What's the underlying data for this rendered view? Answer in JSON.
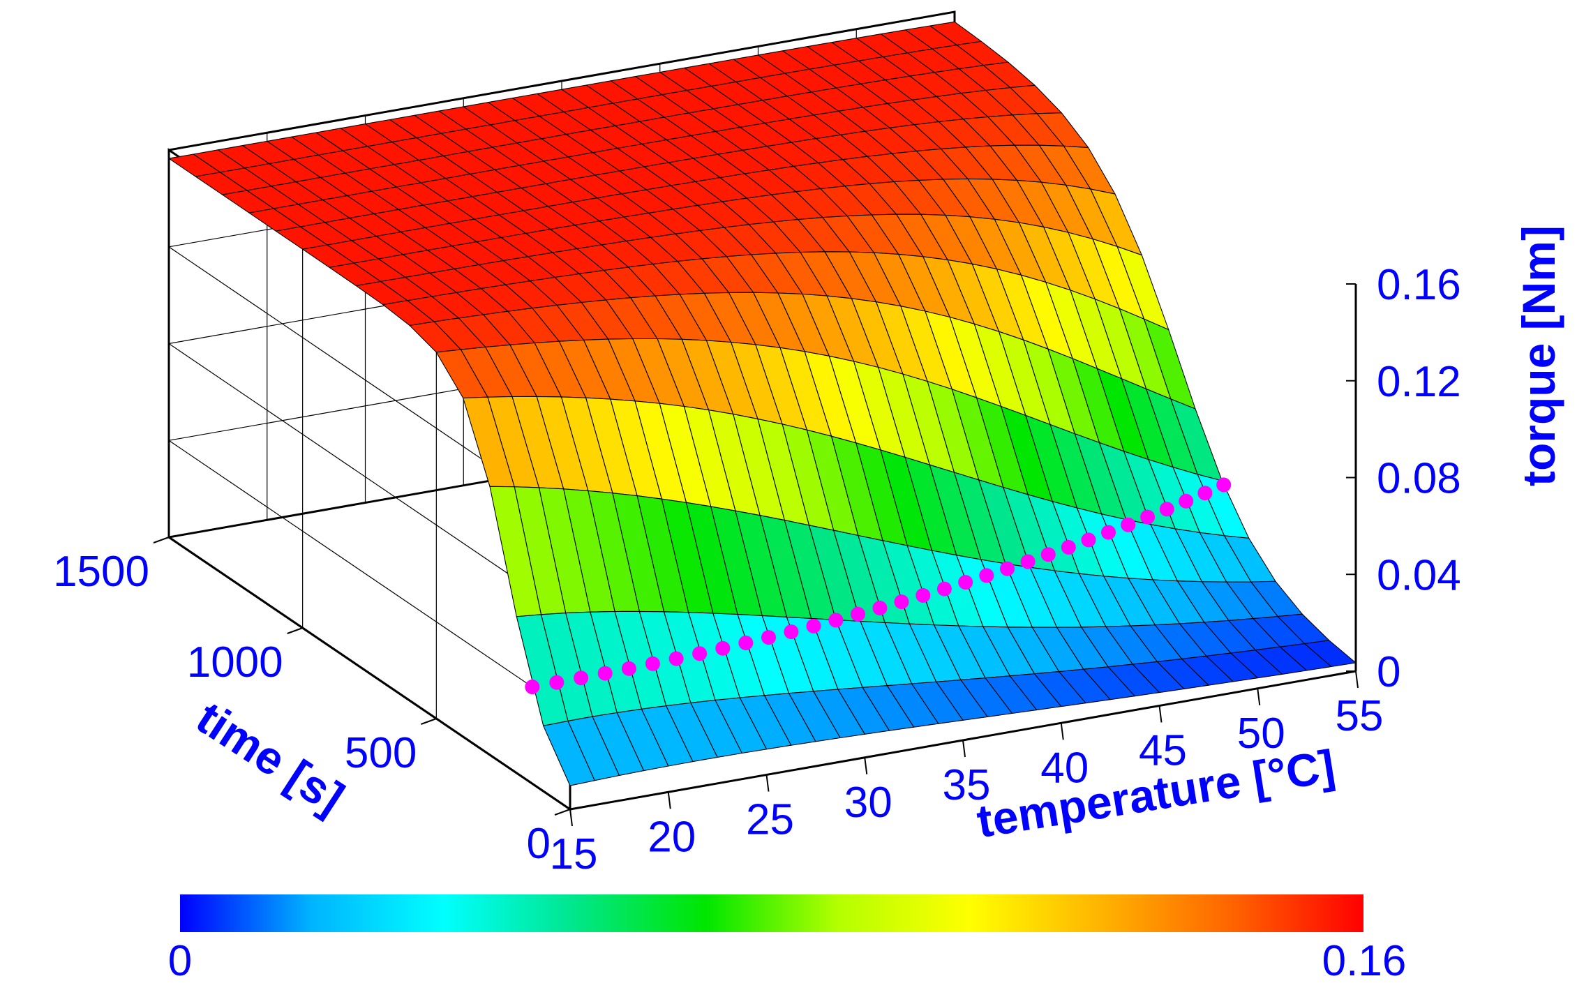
{
  "chart_data": {
    "type": "surface3d",
    "x_axis": {
      "label": "temperature [°C]",
      "ticks": [
        15,
        20,
        25,
        30,
        35,
        40,
        45,
        50,
        55
      ],
      "range": [
        15,
        55
      ]
    },
    "y_axis": {
      "label": "time [s]",
      "ticks": [
        0,
        500,
        1000,
        1500
      ],
      "range": [
        0,
        1500
      ]
    },
    "z_axis": {
      "label": "torque [Nm]",
      "ticks": [
        "0",
        "0.04",
        "0.08",
        "0.12",
        "0.16"
      ],
      "range": [
        0,
        0.16
      ]
    },
    "colorbar": {
      "min_label": "0",
      "max_label": "0.16",
      "colors": [
        "#0000ff",
        "#00b4ff",
        "#00ffff",
        "#00e68c",
        "#00e600",
        "#b4ff00",
        "#ffff00",
        "#ffb400",
        "#ff6400",
        "#ff0000"
      ]
    },
    "surface": {
      "grid_temperature_count": 33,
      "grid_time_count": 16,
      "description_of_gel_point": "torque rises from ~0 to ~0.16 Nm; onset time increases with temperature",
      "final_torque_Nm": 0.155
    },
    "marker_series": {
      "color": "#ff00ff",
      "torque_Nm": 0.04,
      "temperatures": [
        15.0,
        16.25,
        17.5,
        18.75,
        20.0,
        21.25,
        22.5,
        23.75,
        25.0,
        26.25,
        27.5,
        28.75,
        30.0,
        31.25,
        32.5,
        33.75,
        35.0,
        36.25,
        37.5,
        38.75,
        40.0,
        41.25,
        42.5,
        43.75,
        45.0,
        46.25,
        47.5,
        48.75,
        50.0,
        51.25,
        52.5,
        53.75,
        55.0
      ]
    },
    "grid": true
  }
}
